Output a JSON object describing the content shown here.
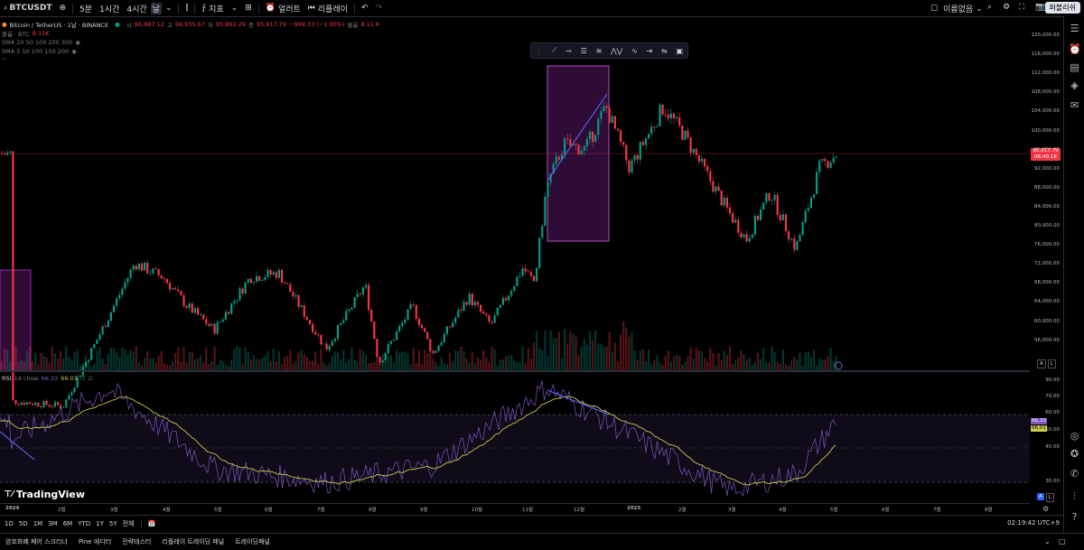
{
  "toolbar": {
    "symbol": "BTCUSDT",
    "intervals": [
      "5분",
      "1시간",
      "4시간"
    ],
    "indicators_label": "지표",
    "alert_label": "얼러트",
    "replay_label": "리플레이",
    "unnamed_label": "이름없음",
    "publish_label": "퍼블리쉬"
  },
  "legend": {
    "title": "Bitcoin / TetherUS · 1날 · BINANCE",
    "ohlc": [
      {
        "k": "시",
        "v": "96,887.12"
      },
      {
        "k": "고",
        "v": "96,935.67"
      },
      {
        "k": "저",
        "v": "95,862.29"
      },
      {
        "k": "종",
        "v": "95,917.79"
      }
    ],
    "change": "−969.33 (−1.00%)",
    "volume_label": "볼륨",
    "volume_value": "8.11 K",
    "vol_row_label": "볼륨 · BTC",
    "vol_row_value": "8.11K",
    "sma1": "SMA 20 50 100 200 300",
    "sma2": "SMA 5 50 100 150 200"
  },
  "price_axis": [
    "120,000.00",
    "116,000.00",
    "112,000.00",
    "108,000.00",
    "104,000.00",
    "100,000.00",
    "96,000.00",
    "92,000.00",
    "88,000.00",
    "84,000.00",
    "80,000.00",
    "76,000.00",
    "72,000.00",
    "68,000.00",
    "64,000.00",
    "60,000.00",
    "56,000.00"
  ],
  "price_tag": {
    "price": "95,917.79",
    "countdown": "06:40:18"
  },
  "rsi": {
    "label": "RSI",
    "params": "14 close",
    "value1": "66.33",
    "value2": "66.01",
    "axis": [
      "90.00",
      "70.00",
      "60.00",
      "50.00",
      "40.00",
      "30.00"
    ],
    "tag1": "66.33",
    "tag2": "66.01"
  },
  "time_axis": [
    "2024",
    "2월",
    "3월",
    "4월",
    "5월",
    "6월",
    "7월",
    "8월",
    "9월",
    "10월",
    "11월",
    "12월",
    "2025",
    "2월",
    "3월",
    "4월",
    "5월",
    "6월",
    "7월",
    "8월"
  ],
  "ranges": [
    "1D",
    "5D",
    "1M",
    "3M",
    "6M",
    "YTD",
    "1Y",
    "5Y",
    "전체"
  ],
  "clock": "02:19:42 UTC+9",
  "logo": "TradingView",
  "panel_tabs": [
    "암호화폐 페어 스크리너",
    "Pine 에디터",
    "전략테스터",
    "리플레이 트레이딩 패널",
    "트레이딩패널"
  ],
  "al_buttons": {
    "a": "A",
    "l": "L"
  },
  "colors": {
    "up": "#089981",
    "down": "#f23645",
    "rsi": "#7e57c2",
    "rsi_ma": "#c9c94e",
    "box": "#9c27b0"
  },
  "chart_data": {
    "type": "candlestick",
    "x_range": [
      "2024-01",
      "2025-08"
    ],
    "ylim": [
      54000,
      122000
    ],
    "close_path": [
      {
        "x": "2024-01-01",
        "close": 44000
      },
      {
        "x": "2024-02-01",
        "close": 43000
      },
      {
        "x": "2024-02-28",
        "close": 62000
      },
      {
        "x": "2024-03-14",
        "close": 73000
      },
      {
        "x": "2024-03-31",
        "close": 70000
      },
      {
        "x": "2024-04-14",
        "close": 64000
      },
      {
        "x": "2024-04-30",
        "close": 59000
      },
      {
        "x": "2024-05-21",
        "close": 70000
      },
      {
        "x": "2024-06-07",
        "close": 71000
      },
      {
        "x": "2024-07-05",
        "close": 55000
      },
      {
        "x": "2024-07-28",
        "close": 68500
      },
      {
        "x": "2024-08-05",
        "close": 52000
      },
      {
        "x": "2024-08-25",
        "close": 64000
      },
      {
        "x": "2024-09-06",
        "close": 54000
      },
      {
        "x": "2024-09-27",
        "close": 66000
      },
      {
        "x": "2024-10-10",
        "close": 60000
      },
      {
        "x": "2024-10-29",
        "close": 72000
      },
      {
        "x": "2024-11-05",
        "close": 69000
      },
      {
        "x": "2024-11-12",
        "close": 89000
      },
      {
        "x": "2024-11-22",
        "close": 98000
      },
      {
        "x": "2024-12-05",
        "close": 97000
      },
      {
        "x": "2024-12-17",
        "close": 106000
      },
      {
        "x": "2024-12-31",
        "close": 93000
      },
      {
        "x": "2025-01-20",
        "close": 106000
      },
      {
        "x": "2025-02-01",
        "close": 100000
      },
      {
        "x": "2025-02-27",
        "close": 84000
      },
      {
        "x": "2025-03-10",
        "close": 78000
      },
      {
        "x": "2025-03-24",
        "close": 88000
      },
      {
        "x": "2025-04-08",
        "close": 76000
      },
      {
        "x": "2025-04-22",
        "close": 93000
      },
      {
        "x": "2025-05-02",
        "close": 96000
      }
    ],
    "rsi_path": [
      {
        "x": "2024-01-01",
        "rsi": 55
      },
      {
        "x": "2024-02-28",
        "rsi": 85
      },
      {
        "x": "2024-04-30",
        "rsi": 38
      },
      {
        "x": "2024-07-05",
        "rsi": 30
      },
      {
        "x": "2024-09-06",
        "rsi": 40
      },
      {
        "x": "2024-11-12",
        "rsi": 86
      },
      {
        "x": "2025-02-27",
        "rsi": 25
      },
      {
        "x": "2025-04-08",
        "rsi": 35
      },
      {
        "x": "2025-05-02",
        "rsi": 66
      }
    ]
  }
}
